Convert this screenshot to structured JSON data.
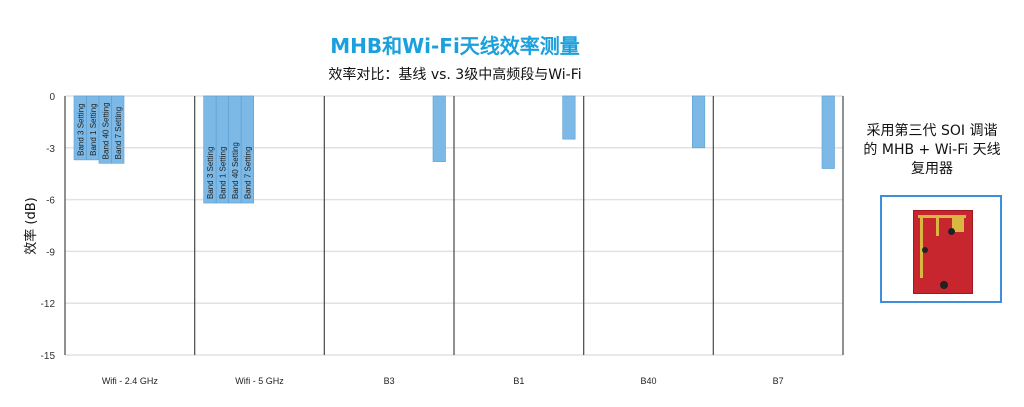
{
  "chart_data": {
    "type": "bar",
    "title": "MHB和Wi-Fi天线效率测量",
    "subtitle": "效率对比：基线 vs. 3级中高频段与Wi-Fi",
    "xlabel": "",
    "ylabel": "效率 (dB)",
    "ylim": [
      -15,
      0
    ],
    "yticks": [
      0,
      -3,
      -6,
      -9,
      -12,
      -15
    ],
    "grid": true,
    "bar_color": "#7cb9e6",
    "categories": [
      "Wifi - 2.4 GHz",
      "Wifi - 5 GHz",
      "B3",
      "B1",
      "B40",
      "B7"
    ],
    "groups": [
      {
        "category": "Wifi - 2.4 GHz",
        "bars": [
          {
            "label": "Band 3 Setting",
            "value": -3.7
          },
          {
            "label": "Band 1 Setting",
            "value": -3.7
          },
          {
            "label": "Band 40 Setting",
            "value": -3.9
          },
          {
            "label": "Band 7 Setting",
            "value": -3.9
          }
        ]
      },
      {
        "category": "Wifi - 5 GHz",
        "bars": [
          {
            "label": "Band 3 Setting",
            "value": -6.2
          },
          {
            "label": "Band 1 Setting",
            "value": -6.2
          },
          {
            "label": "Band 40 Setting",
            "value": -6.2
          },
          {
            "label": "Band 7 Setting",
            "value": -6.2
          }
        ]
      },
      {
        "category": "B3",
        "bars": [
          {
            "label": "",
            "value": -3.8
          }
        ]
      },
      {
        "category": "B1",
        "bars": [
          {
            "label": "",
            "value": -2.5
          }
        ]
      },
      {
        "category": "B40",
        "bars": [
          {
            "label": "",
            "value": -3.0
          }
        ]
      },
      {
        "category": "B7",
        "bars": [
          {
            "label": "",
            "value": -4.2
          }
        ]
      }
    ]
  },
  "side_panel": {
    "caption": "采用第三代 SOI 调谐的 MHB + Wi-Fi 天线复用器",
    "image_frame_color": "#3d8fdc"
  }
}
